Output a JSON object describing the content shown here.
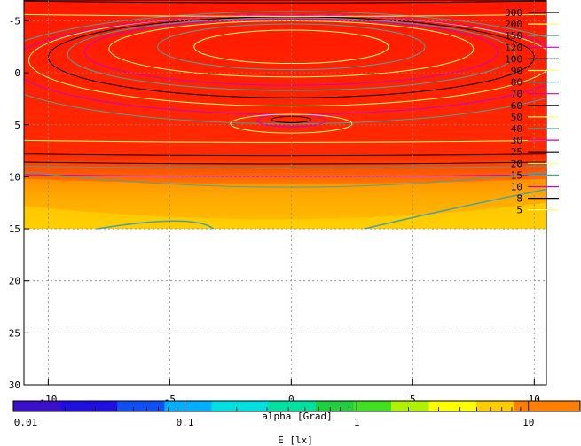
{
  "chart_data": {
    "type": "heatmap",
    "title": "",
    "xlabel": "alpha [Grad]",
    "ylabel": "",
    "x_ticks": [
      "-10",
      "-5",
      "0",
      "5",
      "10"
    ],
    "x_tick_values": [
      -10,
      -5,
      0,
      5,
      10
    ],
    "y_ticks": [
      "-5",
      "0",
      "5",
      "10",
      "15",
      "20",
      "25",
      "30"
    ],
    "y_tick_values": [
      -5,
      0,
      5,
      10,
      15,
      20,
      25,
      30
    ],
    "xlim": [
      -11,
      10.5
    ],
    "ylim": [
      -7,
      30
    ],
    "y_inverted": true,
    "grid": true,
    "data_extent_y": [
      -7,
      15
    ],
    "contour_levels": [
      "300",
      "200",
      "150",
      "120",
      "100",
      "90",
      "80",
      "70",
      "60",
      "50",
      "40",
      "30",
      "25",
      "20",
      "15",
      "10",
      "8",
      "5"
    ],
    "contour_key_position": "top-right",
    "colorbar": {
      "label": "E [lx]",
      "scale": "log",
      "range": [
        0.01,
        20
      ],
      "tick_labels": [
        "0.01",
        "0.1",
        "1",
        "10"
      ],
      "tick_values": [
        0.01,
        0.1,
        1,
        10
      ]
    }
  },
  "colors": {
    "high": "#ff1a00",
    "mid": "#ff7a00",
    "low": "#ffcc00",
    "contour_black": "#000000",
    "contour_magenta": "#cc00cc",
    "contour_yellow": "#ffff66",
    "contour_teal": "#4aa3a0"
  }
}
